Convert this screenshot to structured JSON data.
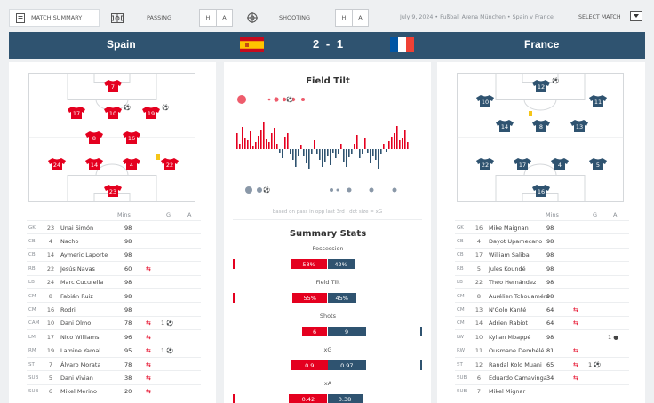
{
  "nav": {
    "tabs": [
      {
        "label": "MATCH SUMMARY",
        "icon": "document-icon",
        "active": true
      },
      {
        "label": "PASSING",
        "icon": "pitch-icon",
        "active": false
      },
      {
        "label": "SHOOTING",
        "icon": "crosshair-icon",
        "active": false
      }
    ],
    "ha": [
      "H",
      "A"
    ],
    "match_info": "July 9, 2024 • Fußball Arena München • Spain v France",
    "select_match": "SELECT MATCH"
  },
  "score": {
    "home": "Spain",
    "away": "France",
    "home_score": "2",
    "away_score": "1",
    "separator": "-",
    "home_color": "#e4001f",
    "away_color": "#2f5370"
  },
  "home_lineup": [
    {
      "n": "7",
      "goal": false
    },
    {
      "n": "17",
      "goal": false
    },
    {
      "n": "10",
      "goal": true
    },
    {
      "n": "19",
      "goal": true
    },
    {
      "n": "8",
      "goal": false
    },
    {
      "n": "16",
      "goal": false
    },
    {
      "n": "24",
      "goal": false
    },
    {
      "n": "14",
      "goal": false
    },
    {
      "n": "4",
      "goal": false
    },
    {
      "n": "22",
      "goal": false
    },
    {
      "n": "23",
      "goal": false
    }
  ],
  "away_lineup": [
    {
      "n": "12",
      "goal": true
    },
    {
      "n": "10",
      "goal": false
    },
    {
      "n": "11",
      "goal": false
    },
    {
      "n": "14",
      "goal": false
    },
    {
      "n": "8",
      "goal": false
    },
    {
      "n": "13",
      "goal": false
    },
    {
      "n": "22",
      "goal": false
    },
    {
      "n": "17",
      "goal": false
    },
    {
      "n": "4",
      "goal": false
    },
    {
      "n": "5",
      "goal": false
    },
    {
      "n": "16",
      "goal": false
    }
  ],
  "table_headers": {
    "mins": "Mins",
    "g": "G",
    "a": "A"
  },
  "home_players": [
    {
      "pos": "GK",
      "num": "23",
      "name": "Unai Simón",
      "mins": "98",
      "sub": "",
      "goals": ""
    },
    {
      "pos": "CB",
      "num": "4",
      "name": "Nacho",
      "mins": "98",
      "sub": "",
      "goals": ""
    },
    {
      "pos": "CB",
      "num": "14",
      "name": "Aymeric Laporte",
      "mins": "98",
      "sub": "",
      "goals": ""
    },
    {
      "pos": "RB",
      "num": "22",
      "name": "Jesús Navas",
      "mins": "60",
      "sub": "⇆",
      "goals": ""
    },
    {
      "pos": "LB",
      "num": "24",
      "name": "Marc Cucurella",
      "mins": "98",
      "sub": "",
      "goals": ""
    },
    {
      "pos": "CM",
      "num": "8",
      "name": "Fabián Ruiz",
      "mins": "98",
      "sub": "",
      "goals": ""
    },
    {
      "pos": "CM",
      "num": "16",
      "name": "Rodri",
      "mins": "98",
      "sub": "",
      "goals": ""
    },
    {
      "pos": "CAM",
      "num": "10",
      "name": "Dani Olmo",
      "mins": "78",
      "sub": "⇆",
      "goals": "1 ⚽"
    },
    {
      "pos": "LM",
      "num": "17",
      "name": "Nico Williams",
      "mins": "96",
      "sub": "⇆",
      "goals": ""
    },
    {
      "pos": "RM",
      "num": "19",
      "name": "Lamine Yamal",
      "mins": "95",
      "sub": "⇆",
      "goals": "1 ⚽"
    },
    {
      "pos": "ST",
      "num": "7",
      "name": "Álvaro Morata",
      "mins": "78",
      "sub": "⇆",
      "goals": ""
    },
    {
      "pos": "SUB",
      "num": "5",
      "name": "Dani Vivian",
      "mins": "38",
      "sub": "⇆",
      "goals": ""
    },
    {
      "pos": "SUB",
      "num": "6",
      "name": "Mikel Merino",
      "mins": "20",
      "sub": "⇆",
      "goals": ""
    }
  ],
  "away_players": [
    {
      "pos": "GK",
      "num": "16",
      "name": "Mike Maignan",
      "mins": "98",
      "sub": "",
      "goals": ""
    },
    {
      "pos": "CB",
      "num": "4",
      "name": "Dayot Upamecano",
      "mins": "98",
      "sub": "",
      "goals": ""
    },
    {
      "pos": "CB",
      "num": "17",
      "name": "William Saliba",
      "mins": "98",
      "sub": "",
      "goals": ""
    },
    {
      "pos": "RB",
      "num": "5",
      "name": "Jules Koundé",
      "mins": "98",
      "sub": "",
      "goals": ""
    },
    {
      "pos": "LB",
      "num": "22",
      "name": "Théo Hernández",
      "mins": "98",
      "sub": "",
      "goals": ""
    },
    {
      "pos": "CM",
      "num": "8",
      "name": "Aurélien Tchouaméni",
      "mins": "98",
      "sub": "",
      "goals": ""
    },
    {
      "pos": "CM",
      "num": "13",
      "name": "N'Golo Kanté",
      "mins": "64",
      "sub": "⇆",
      "goals": ""
    },
    {
      "pos": "CM",
      "num": "14",
      "name": "Adrien Rabiot",
      "mins": "64",
      "sub": "⇆",
      "goals": ""
    },
    {
      "pos": "LW",
      "num": "10",
      "name": "Kylian Mbappé",
      "mins": "98",
      "sub": "",
      "goals": "",
      "assists": "1 ●"
    },
    {
      "pos": "RW",
      "num": "11",
      "name": "Ousmane Dembélé",
      "mins": "81",
      "sub": "⇆",
      "goals": ""
    },
    {
      "pos": "ST",
      "num": "12",
      "name": "Randal Kolo Muani",
      "mins": "65",
      "sub": "⇆",
      "goals": "1 ⚽"
    },
    {
      "pos": "SUB",
      "num": "6",
      "name": "Eduardo Camavinga",
      "mins": "34",
      "sub": "⇆",
      "goals": ""
    },
    {
      "pos": "SUB",
      "num": "7",
      "name": "Mikel Mignar",
      "mins": "",
      "sub": "",
      "goals": ""
    }
  ],
  "field_tilt": {
    "title": "Field Tilt",
    "caption": "based on pass in opp last 3rd | dot size = xG"
  },
  "summary": {
    "title": "Summary Stats",
    "stats": [
      {
        "label": "Possession",
        "home": "58%",
        "away": "42%",
        "home_v": 58,
        "away_v": 42,
        "max": 100
      },
      {
        "label": "Field Tilt",
        "home": "55%",
        "away": "45%",
        "home_v": 55,
        "away_v": 45,
        "max": 100
      },
      {
        "label": "Shots",
        "home": "6",
        "away": "9",
        "home_v": 6,
        "away_v": 9,
        "max": 15
      },
      {
        "label": "xG",
        "home": "0.9",
        "away": "0.97",
        "home_v": 0.9,
        "away_v": 0.97,
        "max": 1.6
      },
      {
        "label": "xA",
        "home": "0.42",
        "away": "0.38",
        "home_v": 0.42,
        "away_v": 0.38,
        "max": 0.7
      }
    ]
  }
}
